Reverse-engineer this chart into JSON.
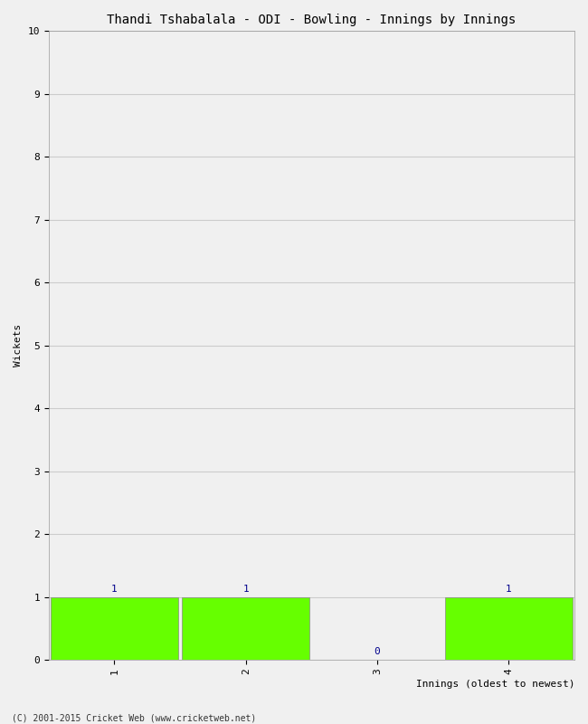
{
  "title": "Thandi Tshabalala - ODI - Bowling - Innings by Innings",
  "xlabel": "Innings (oldest to newest)",
  "ylabel": "Wickets",
  "categories": [
    "1",
    "2",
    "3",
    "4"
  ],
  "values": [
    1,
    1,
    0,
    1
  ],
  "bar_color": "#66ff00",
  "bar_edge_color": "#888888",
  "ylim": [
    0,
    10
  ],
  "yticks": [
    0,
    1,
    2,
    3,
    4,
    5,
    6,
    7,
    8,
    9,
    10
  ],
  "label_color": "#00008b",
  "label_fontsize": 8,
  "axis_fontsize": 8,
  "title_fontsize": 10,
  "background_color": "#f0f0f0",
  "footer_text": "(C) 2001-2015 Cricket Web (www.cricketweb.net)",
  "grid_color": "#cccccc",
  "bar_width": 0.97
}
